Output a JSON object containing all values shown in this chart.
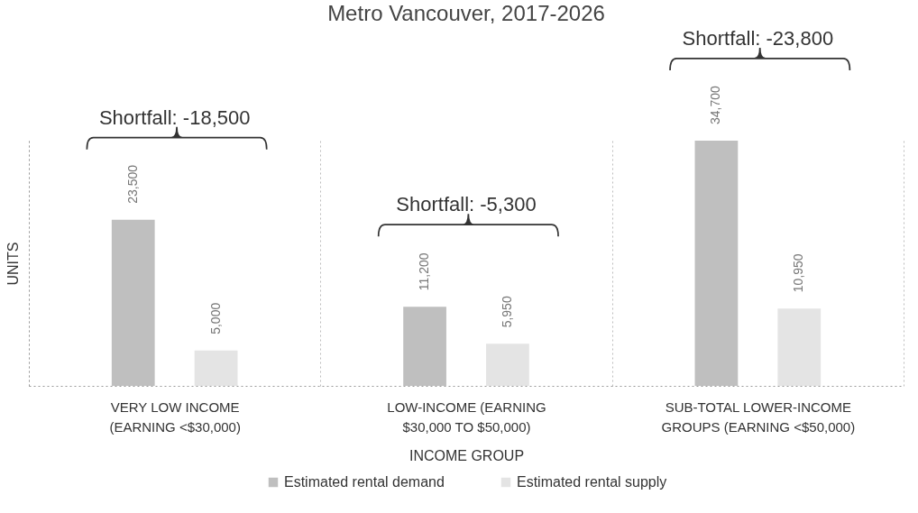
{
  "chart_data": {
    "type": "bar",
    "title": "Metro Vancouver, 2017-2026",
    "xlabel": "INCOME GROUP",
    "ylabel": "UNITS",
    "categories": [
      "VERY LOW INCOME (EARNING <$30,000)",
      "LOW-INCOME (EARNING $30,000 TO $50,000)",
      "SUB-TOTAL LOWER-INCOME GROUPS (EARNING <$50,000)"
    ],
    "series": [
      {
        "name": "Estimated rental demand",
        "color": "#bfbfbf",
        "values": [
          23500,
          11200,
          34700
        ],
        "value_labels": [
          "23,500",
          "11,200",
          "34,700"
        ]
      },
      {
        "name": "Estimated rental supply",
        "color": "#e4e4e4",
        "values": [
          5000,
          5950,
          10950
        ],
        "value_labels": [
          "5,000",
          "5,950",
          "10,950"
        ]
      }
    ],
    "annotations": [
      "Shortfall: -18,500",
      "Shortfall: -5,300",
      "Shortfall: -23,800"
    ],
    "legend": "bottom",
    "grid": "x",
    "tick_labels": "x"
  }
}
